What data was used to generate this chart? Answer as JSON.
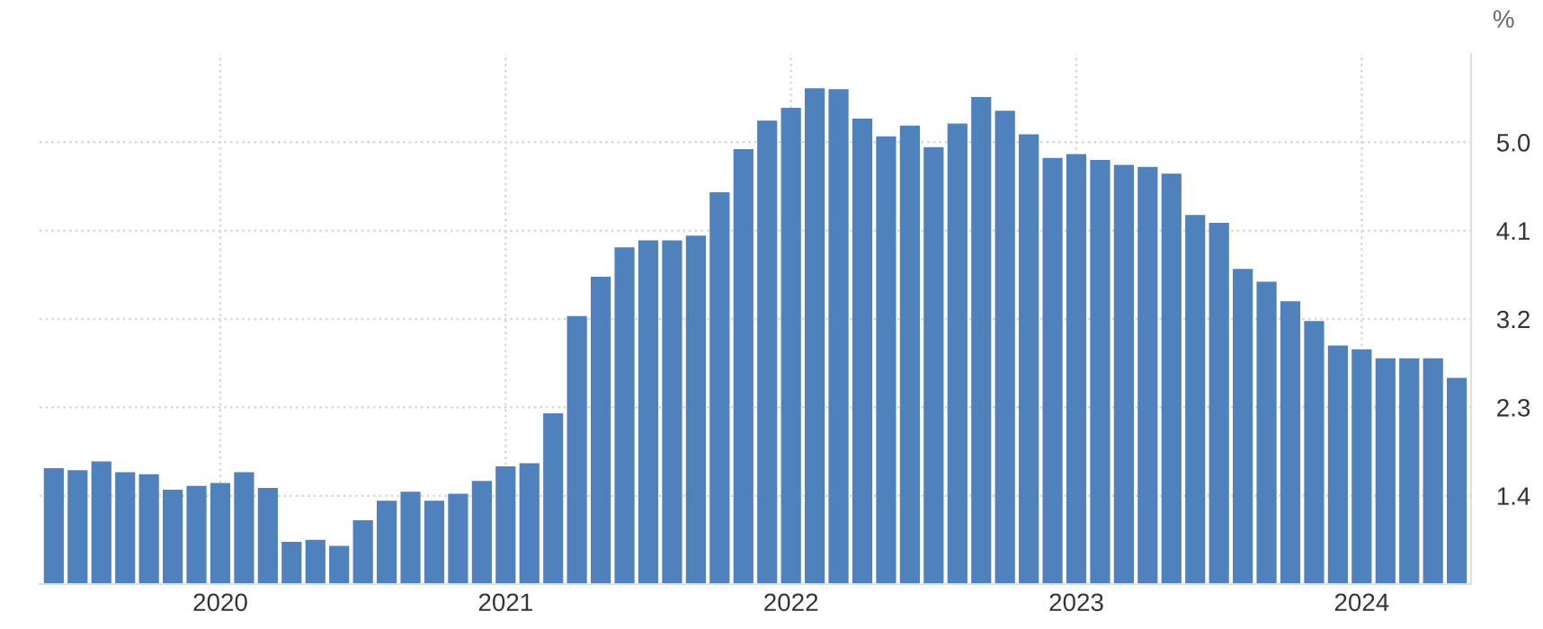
{
  "chart_data": {
    "type": "bar",
    "ylabel": "%",
    "categories": [
      null,
      null,
      null,
      null,
      null,
      null,
      null,
      "2020",
      null,
      null,
      null,
      null,
      null,
      null,
      null,
      null,
      null,
      null,
      null,
      "2021",
      null,
      null,
      null,
      null,
      null,
      null,
      null,
      null,
      null,
      null,
      null,
      "2022",
      null,
      null,
      null,
      null,
      null,
      null,
      null,
      null,
      null,
      null,
      null,
      "2023",
      null,
      null,
      null,
      null,
      null,
      null,
      null,
      null,
      null,
      null,
      null,
      "2024",
      null,
      null,
      null,
      null
    ],
    "values": [
      1.68,
      1.66,
      1.75,
      1.64,
      1.62,
      1.46,
      1.5,
      1.53,
      1.64,
      1.48,
      0.93,
      0.95,
      0.89,
      1.15,
      1.35,
      1.44,
      1.35,
      1.42,
      1.55,
      1.7,
      1.73,
      2.24,
      3.23,
      3.63,
      3.93,
      4.0,
      4.0,
      4.05,
      4.49,
      4.93,
      5.22,
      5.35,
      5.55,
      5.54,
      5.24,
      5.06,
      5.17,
      4.95,
      5.19,
      5.46,
      5.32,
      5.08,
      4.84,
      4.88,
      4.82,
      4.77,
      4.75,
      4.68,
      4.26,
      4.18,
      3.71,
      3.58,
      3.38,
      3.18,
      2.93,
      2.89,
      2.8,
      2.8,
      2.8,
      2.6
    ],
    "color": "#4f81bd",
    "ylim": [
      0.5,
      5.9
    ],
    "yticks": [
      1.4,
      2.3,
      3.2,
      4.1,
      {
        "value": 5.0,
        "label": "5.0"
      }
    ],
    "grid": true
  }
}
